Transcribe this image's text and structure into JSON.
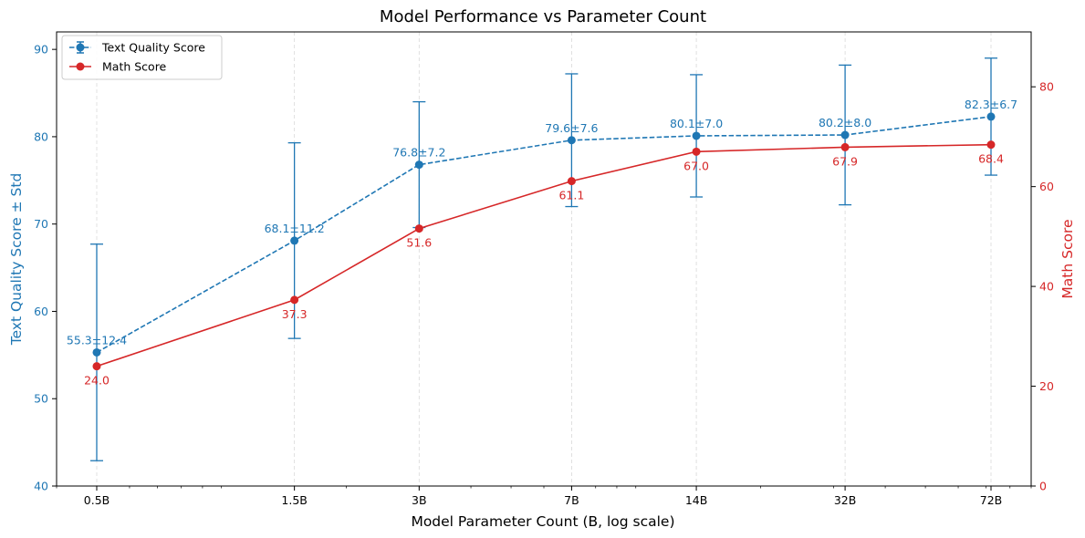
{
  "chart_data": {
    "type": "line",
    "title": "Model Performance vs Parameter Count",
    "xlabel": "Model Parameter Count (B, log scale)",
    "x_scale": "log",
    "categories": [
      "0.5B",
      "1.5B",
      "3B",
      "7B",
      "14B",
      "32B",
      "72B"
    ],
    "x": [
      0.5,
      1.5,
      3,
      7,
      14,
      32,
      72
    ],
    "y_left": {
      "label": "Text Quality Score ± Std",
      "ylim": [
        40,
        92
      ],
      "ticks": [
        40,
        50,
        60,
        70,
        80,
        90
      ],
      "color": "#1f77b4"
    },
    "y_right": {
      "label": "Math Score",
      "ylim": [
        0,
        91
      ],
      "ticks": [
        0,
        20,
        40,
        60,
        80
      ],
      "color": "#d62728"
    },
    "series": [
      {
        "name": "Text Quality Score",
        "axis": "left",
        "style": "dashed",
        "color": "#1f77b4",
        "values": [
          55.3,
          68.1,
          76.8,
          79.6,
          80.1,
          80.2,
          82.3
        ],
        "std": [
          12.4,
          11.2,
          7.2,
          7.6,
          7.0,
          8.0,
          6.7
        ],
        "labels": [
          "55.3±12.4",
          "68.1±11.2",
          "76.8±7.2",
          "79.6±7.6",
          "80.1±7.0",
          "80.2±8.0",
          "82.3±6.7"
        ]
      },
      {
        "name": "Math Score",
        "axis": "right",
        "style": "solid",
        "color": "#d62728",
        "values": [
          24.0,
          37.3,
          51.6,
          61.1,
          67.0,
          67.9,
          68.4
        ],
        "labels": [
          "24.0",
          "37.3",
          "51.6",
          "61.1",
          "67.0",
          "67.9",
          "68.4"
        ]
      }
    ],
    "grid": "x-dashed",
    "legend_position": "top-left"
  }
}
